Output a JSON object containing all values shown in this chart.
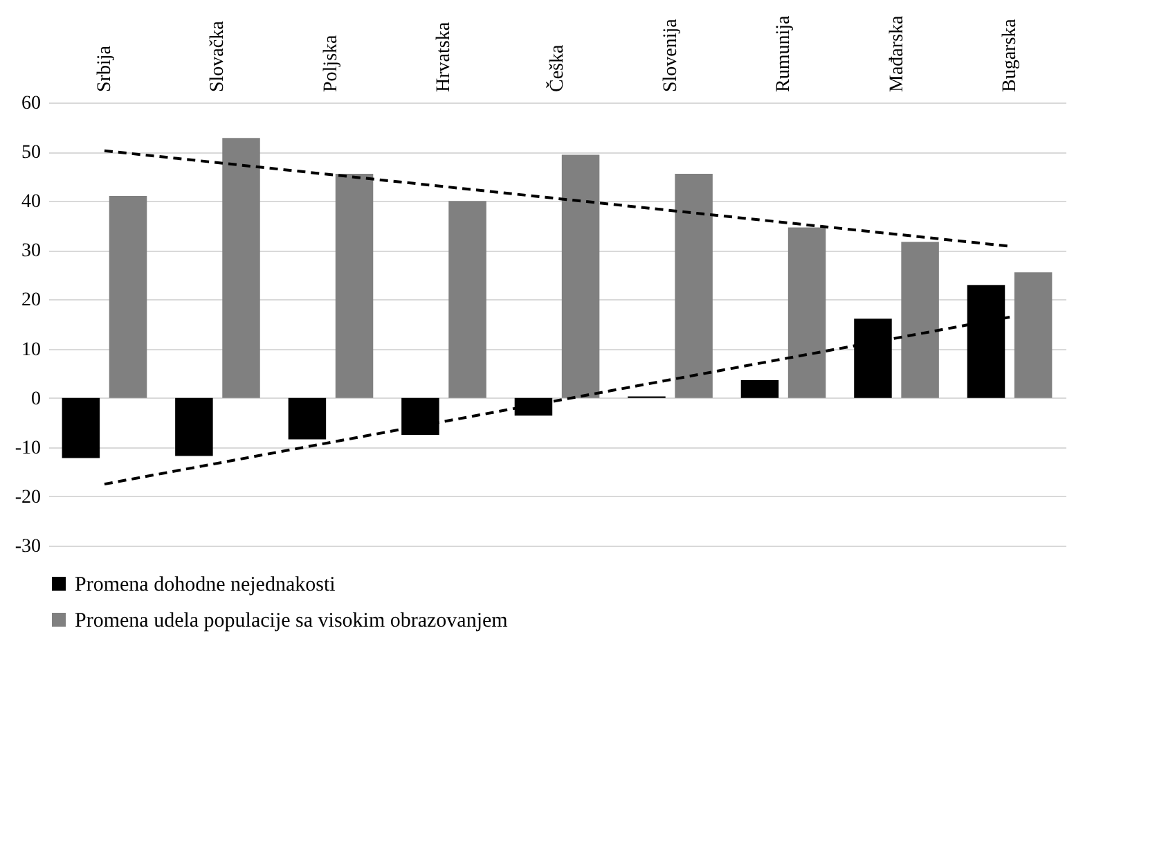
{
  "chart_data": {
    "type": "bar",
    "categories": [
      "Srbija",
      "Slovačka",
      "Poljska",
      "Hrvatska",
      "Češka",
      "Slovenija",
      "Rumunija",
      "Mađarska",
      "Bugarska"
    ],
    "series": [
      {
        "name": "Promena dohodne nejednakosti",
        "color": "#000000",
        "values": [
          -12.2,
          -11.8,
          -8.4,
          -7.5,
          -3.6,
          0.3,
          3.6,
          16.1,
          22.9
        ]
      },
      {
        "name": "Promena udela populacije sa visokim obrazovanjem",
        "color": "#808080",
        "values": [
          41.0,
          52.8,
          45.5,
          40.0,
          49.4,
          45.5,
          34.6,
          31.7,
          25.5
        ]
      },
      {
        "type": "line",
        "color": "#000000",
        "x": [
          "Srbija",
          "Bugarska"
        ],
        "values": [
          50.2,
          30.8
        ],
        "line_style": "dashed"
      },
      {
        "type": "line",
        "color": "#000000",
        "x": [
          "Srbija",
          "Bugarska"
        ],
        "values": [
          -17.5,
          16.4
        ],
        "line_style": "dashed"
      }
    ],
    "ylim": [
      -30,
      60
    ],
    "yticks": [
      -30,
      -20,
      -10,
      0,
      10,
      20,
      30,
      40,
      50,
      60
    ],
    "grid": "y",
    "legend": "bottom"
  }
}
